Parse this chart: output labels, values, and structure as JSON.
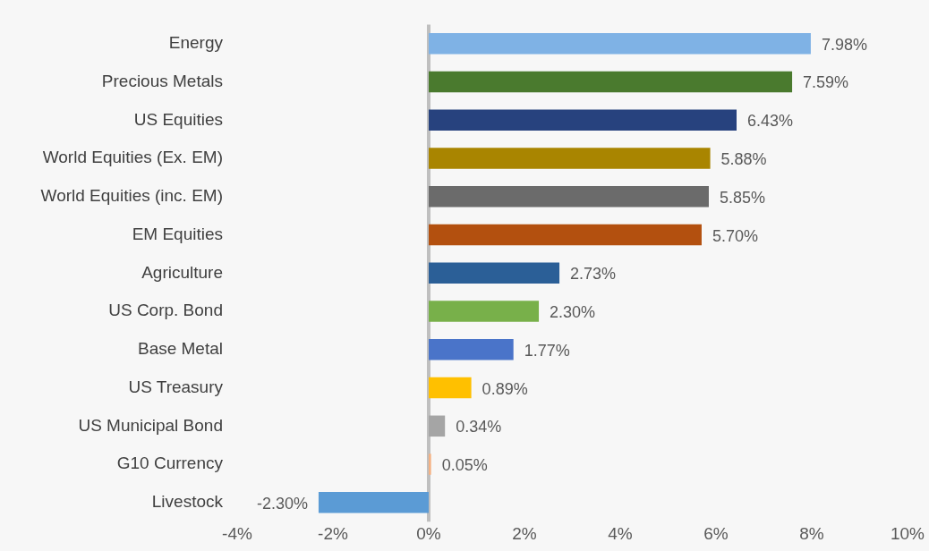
{
  "chart_data": {
    "type": "bar",
    "orientation": "horizontal",
    "categories": [
      "Energy",
      "Precious Metals",
      "US Equities",
      "World Equities (Ex. EM)",
      "World Equities (inc. EM)",
      "EM Equities",
      "Agriculture",
      "US Corp. Bond",
      "Base Metal",
      "US Treasury",
      "US Municipal Bond",
      "G10 Currency",
      "Livestock"
    ],
    "values": [
      7.98,
      7.59,
      6.43,
      5.88,
      5.85,
      5.7,
      2.73,
      2.3,
      1.77,
      0.89,
      0.34,
      0.05,
      -2.3
    ],
    "value_labels": [
      "7.98%",
      "7.59%",
      "6.43%",
      "5.88%",
      "5.85%",
      "5.70%",
      "2.73%",
      "2.30%",
      "1.77%",
      "0.89%",
      "0.34%",
      "0.05%",
      "-2.30%"
    ],
    "colors": [
      "#7fb2e5",
      "#4a7a2e",
      "#27427e",
      "#a98500",
      "#6b6b6b",
      "#b3500f",
      "#2b5f97",
      "#78b04a",
      "#4a74c9",
      "#ffc000",
      "#a5a5a5",
      "#f4b183",
      "#5b9bd5"
    ],
    "xlim": [
      -4,
      10
    ],
    "xticks": [
      {
        "value": -4,
        "label": "-4%"
      },
      {
        "value": -2,
        "label": "-2%"
      },
      {
        "value": 0,
        "label": "0%"
      },
      {
        "value": 2,
        "label": "2%"
      },
      {
        "value": 4,
        "label": "4%"
      },
      {
        "value": 6,
        "label": "6%"
      },
      {
        "value": 8,
        "label": "8%"
      },
      {
        "value": 10,
        "label": "10%"
      }
    ],
    "ref_lines": [
      {
        "axis": "x",
        "value": 0,
        "color": "#bfbfbf"
      }
    ],
    "grid": false,
    "legend": false
  }
}
